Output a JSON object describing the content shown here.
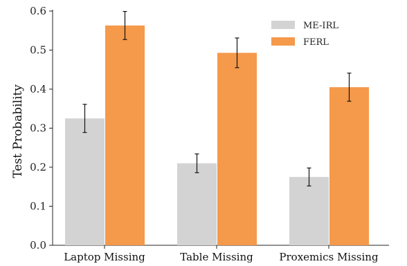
{
  "chart_data": {
    "type": "bar",
    "categories": [
      "Laptop Missing",
      "Table Missing",
      "Proxemics Missing"
    ],
    "series": [
      {
        "name": "ME-IRL",
        "color": "#d3d3d3",
        "values": [
          0.325,
          0.21,
          0.175
        ],
        "errors": [
          0.036,
          0.024,
          0.023
        ]
      },
      {
        "name": "FERL",
        "color": "#f5994a",
        "values": [
          0.563,
          0.493,
          0.405
        ],
        "errors": [
          0.036,
          0.038,
          0.036
        ]
      }
    ],
    "title": "",
    "xlabel": "",
    "ylabel": "Test Probability",
    "ylim": [
      0,
      0.6
    ],
    "yticks": [
      "0.0",
      "0.1",
      "0.2",
      "0.3",
      "0.4",
      "0.5",
      "0.6"
    ],
    "grid": false,
    "legend_position": "top-right"
  }
}
